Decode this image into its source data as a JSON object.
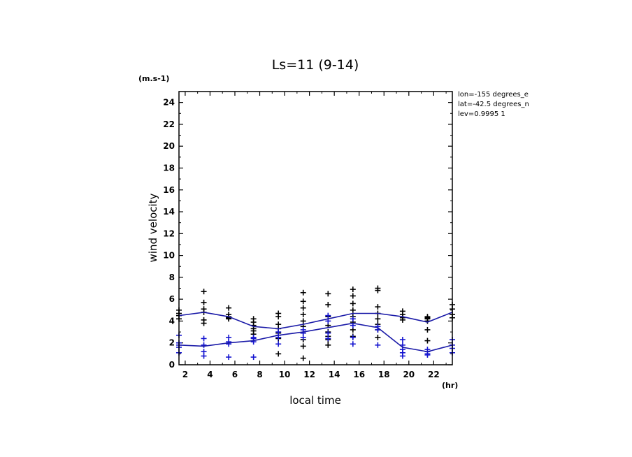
{
  "chart_data": {
    "type": "line",
    "title": "Ls=11 (9-14)",
    "ylabel": "wind velocity",
    "y_unit": "(m.s-1)",
    "xlabel": "local time",
    "x_unit": "(hr)",
    "xlim": [
      1.5,
      23.5
    ],
    "ylim": [
      0,
      25
    ],
    "x_ticks": [
      2,
      4,
      6,
      8,
      10,
      12,
      14,
      16,
      18,
      20,
      22
    ],
    "y_ticks": [
      0,
      2,
      4,
      6,
      8,
      10,
      12,
      14,
      16,
      18,
      20,
      22,
      24
    ],
    "info_lines": [
      "lon=-155 degrees_e",
      "lat=-42.5 degrees_n",
      "lev=0.9995 1"
    ],
    "colors": {
      "series1": "#000000",
      "series2": "#1515d0",
      "mean_line": "#1a1aa8"
    },
    "series": [
      {
        "x": [
          1.5,
          3.5,
          5.5,
          7.5,
          9.5,
          11.5,
          13.5,
          15.5,
          17.5,
          19.5,
          21.5,
          23.5
        ],
        "mean": [
          4.5,
          4.8,
          4.4,
          3.5,
          3.3,
          3.7,
          4.2,
          4.7,
          4.7,
          4.4,
          3.9,
          4.8
        ],
        "scatter": [
          [
            4.2,
            4.5,
            4.7,
            5.0
          ],
          [
            3.8,
            4.1,
            4.8,
            5.1,
            5.7,
            6.7
          ],
          [
            4.2,
            4.3,
            4.4,
            4.6,
            5.2
          ],
          [
            2.8,
            3.1,
            3.3,
            3.6,
            3.9,
            4.2
          ],
          [
            1.0,
            2.4,
            2.9,
            3.3,
            3.7,
            4.4,
            4.7
          ],
          [
            0.6,
            1.7,
            2.3,
            2.9,
            3.5,
            4.0,
            4.6,
            5.2,
            5.8,
            6.6
          ],
          [
            1.8,
            2.3,
            2.6,
            3.0,
            3.6,
            4.4,
            5.5,
            6.5
          ],
          [
            2.6,
            3.2,
            3.9,
            4.4,
            5.0,
            5.6,
            6.3,
            6.9
          ],
          [
            2.5,
            3.2,
            3.7,
            4.2,
            4.7,
            5.3,
            6.8,
            7.0
          ],
          [
            4.1,
            4.3,
            4.6,
            4.9
          ],
          [
            2.2,
            3.2,
            4.0,
            4.2,
            4.3,
            4.4
          ],
          [
            4.3,
            4.6,
            5.1,
            5.5
          ]
        ]
      },
      {
        "x": [
          1.5,
          3.5,
          5.5,
          7.5,
          9.5,
          11.5,
          13.5,
          15.5,
          17.5,
          19.5,
          21.5,
          23.5
        ],
        "mean": [
          1.8,
          1.7,
          2.0,
          2.2,
          2.7,
          3.0,
          3.4,
          3.8,
          3.4,
          1.6,
          1.2,
          1.8
        ],
        "scatter": [
          [
            1.1,
            1.6,
            1.8,
            2.0,
            2.7
          ],
          [
            0.8,
            1.2,
            1.8,
            2.4
          ],
          [
            0.7,
            1.9,
            2.1,
            2.5
          ],
          [
            0.7,
            2.1,
            2.4,
            2.5
          ],
          [
            1.9,
            2.5,
            2.7,
            3.0
          ],
          [
            2.5,
            2.9,
            3.2
          ],
          [
            2.4,
            2.9,
            4.0,
            4.5
          ],
          [
            1.9,
            2.5,
            3.6,
            4.2
          ],
          [
            1.8,
            3.2,
            3.5
          ],
          [
            0.8,
            1.1,
            1.4,
            1.8,
            2.3
          ],
          [
            0.9,
            1.0,
            1.2,
            1.4
          ],
          [
            1.1,
            1.5,
            1.8,
            2.3
          ]
        ]
      }
    ]
  }
}
